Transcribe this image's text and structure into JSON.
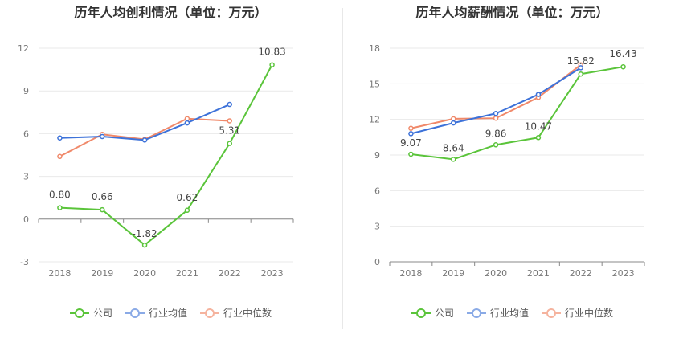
{
  "colors": {
    "company": "#5ac43a",
    "avg": "#3d72d9",
    "median": "#f0896a",
    "grid": "#e9e9e9",
    "axis": "#666666"
  },
  "chart_data": [
    {
      "type": "line",
      "title": "历年人均创利情况（单位：万元）",
      "x": [
        "2018",
        "2019",
        "2020",
        "2021",
        "2022",
        "2023"
      ],
      "ylim": [
        -3,
        12
      ],
      "yticks": [
        "-3",
        "0",
        "3",
        "6",
        "9",
        "12"
      ],
      "ytick_values": [
        -3,
        0,
        3,
        6,
        9,
        12
      ],
      "grid": true,
      "legend_position": "bottom",
      "series": [
        {
          "name": "公司",
          "values": [
            0.8,
            0.66,
            -1.82,
            0.62,
            5.31,
            10.83
          ],
          "labels": [
            "0.80",
            "0.66",
            "-1.82",
            "0.62",
            "5.31",
            "10.83"
          ]
        },
        {
          "name": "行业均值",
          "values": [
            5.7,
            5.8,
            5.55,
            6.75,
            8.05,
            null
          ]
        },
        {
          "name": "行业中位数",
          "values": [
            4.4,
            5.95,
            5.6,
            7.05,
            6.9,
            null
          ]
        }
      ]
    },
    {
      "type": "line",
      "title": "历年人均薪酬情况（单位：万元）",
      "x": [
        "2018",
        "2019",
        "2020",
        "2021",
        "2022",
        "2023"
      ],
      "ylim": [
        0,
        18
      ],
      "yticks": [
        "0",
        "3",
        "6",
        "9",
        "12",
        "15",
        "18"
      ],
      "ytick_values": [
        0,
        3,
        6,
        9,
        12,
        15,
        18
      ],
      "grid": true,
      "legend_position": "bottom",
      "series": [
        {
          "name": "公司",
          "values": [
            9.07,
            8.64,
            9.86,
            10.47,
            15.82,
            16.43
          ],
          "labels": [
            "9.07",
            "8.64",
            "9.86",
            "10.47",
            "15.82",
            "16.43"
          ]
        },
        {
          "name": "行业均值",
          "values": [
            10.8,
            11.7,
            12.5,
            14.1,
            16.35,
            null
          ]
        },
        {
          "name": "行业中位数",
          "values": [
            11.25,
            12.05,
            12.1,
            13.85,
            16.6,
            null
          ]
        }
      ]
    }
  ]
}
